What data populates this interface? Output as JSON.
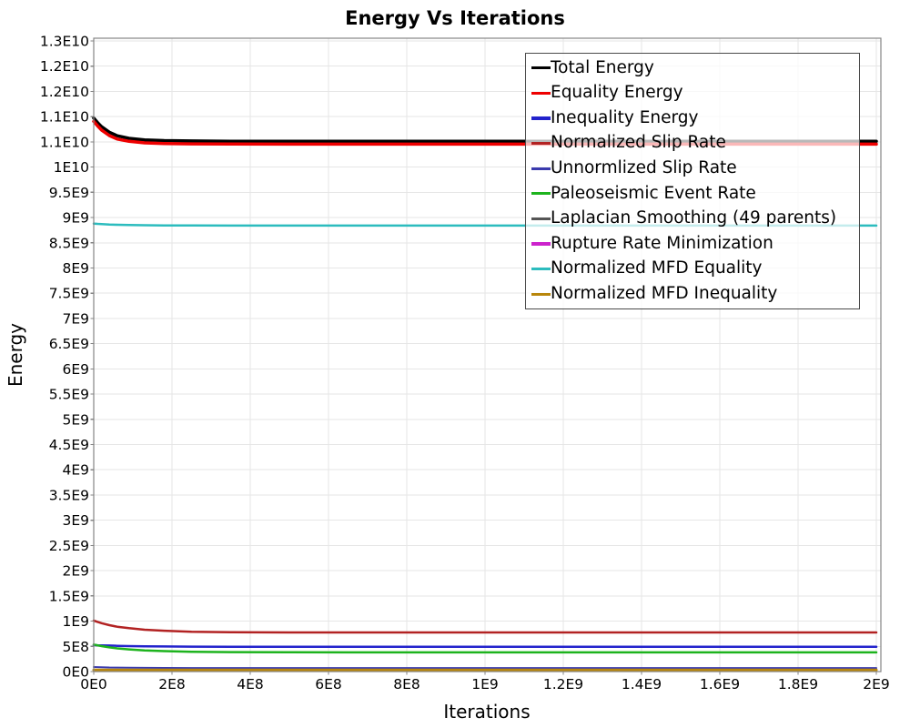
{
  "chart_data": {
    "type": "line",
    "title": "Energy Vs Iterations",
    "xlabel": "Iterations",
    "ylabel": "Energy",
    "xlim": [
      0,
      2012000000.0
    ],
    "ylim": [
      0,
      12550000000.0
    ],
    "grid": true,
    "grid_color": "#e6e6e6",
    "border_color": "#858585",
    "legend_position": "top-right",
    "x_ticks": {
      "values": [
        0,
        200000000.0,
        400000000.0,
        600000000.0,
        800000000.0,
        1000000000.0,
        1200000000.0,
        1400000000.0,
        1600000000.0,
        1800000000.0,
        2000000000.0
      ],
      "labels": [
        "0E0",
        "2E8",
        "4E8",
        "6E8",
        "8E8",
        "1E9",
        "1.2E9",
        "1.4E9",
        "1.6E9",
        "1.8E9",
        "2E9"
      ]
    },
    "y_ticks": {
      "values": [
        0,
        500000000.0,
        1000000000.0,
        1500000000.0,
        2000000000.0,
        2500000000.0,
        3000000000.0,
        3500000000.0,
        4000000000.0,
        4500000000.0,
        5000000000.0,
        5500000000.0,
        6000000000.0,
        6500000000.0,
        7000000000.0,
        7500000000.0,
        8000000000.0,
        8500000000.0,
        9000000000.0,
        9500000000.0,
        10000000000.0,
        10500000000.0,
        11000000000.0,
        11500000000.0,
        12000000000.0,
        12500000000.0
      ],
      "labels": [
        "0E0",
        "5E8",
        "1E9",
        "1.5E9",
        "2E9",
        "2.5E9",
        "3E9",
        "3.5E9",
        "4E9",
        "4.5E9",
        "5E9",
        "5.5E9",
        "6E9",
        "6.5E9",
        "7E9",
        "7.5E9",
        "8E9",
        "8.5E9",
        "9E9",
        "9.5E9",
        "1E10",
        "1.1E10",
        "1.1E10",
        "1.2E10",
        "1.2E10",
        "1.3E10"
      ]
    },
    "x": [
      0,
      10000000.0,
      20000000.0,
      40000000.0,
      60000000.0,
      90000000.0,
      130000000.0,
      180000000.0,
      250000000.0,
      350000000.0,
      500000000.0,
      750000000.0,
      1000000000.0,
      1250000000.0,
      1500000000.0,
      1750000000.0,
      2000000000.0
    ],
    "series": [
      {
        "name": "Total Energy",
        "color": "#000000",
        "width": 3.5,
        "values": [
          10970000000.0,
          10880000000.0,
          10800000000.0,
          10690000000.0,
          10620000000.0,
          10570000000.0,
          10540000000.0,
          10525000000.0,
          10517000000.0,
          10512000000.0,
          10510000000.0,
          10510000000.0,
          10510000000.0,
          10510000000.0,
          10510000000.0,
          10510000000.0,
          10510000000.0
        ]
      },
      {
        "name": "Equality Energy",
        "color": "#ee0000",
        "width": 3.5,
        "values": [
          10905000000.0,
          10815000000.0,
          10735000000.0,
          10625000000.0,
          10555000000.0,
          10510000000.0,
          10480000000.0,
          10467000000.0,
          10460000000.0,
          10456000000.0,
          10455000000.0,
          10455000000.0,
          10455000000.0,
          10455000000.0,
          10455000000.0,
          10455000000.0,
          10455000000.0
        ]
      },
      {
        "name": "Inequality Energy",
        "color": "#2222cc",
        "width": 2.5,
        "values": [
          525000000.0,
          522000000.0,
          520000000.0,
          515000000.0,
          510000000.0,
          505000000.0,
          500000000.0,
          497000000.0,
          494000000.0,
          492000000.0,
          490000000.0,
          490000000.0,
          490000000.0,
          490000000.0,
          490000000.0,
          490000000.0,
          490000000.0
        ]
      },
      {
        "name": "Normalized Slip Rate",
        "color": "#b22222",
        "width": 2.5,
        "values": [
          1010000000.0,
          985000000.0,
          960000000.0,
          920000000.0,
          890000000.0,
          860000000.0,
          830000000.0,
          810000000.0,
          790000000.0,
          780000000.0,
          775000000.0,
          775000000.0,
          775000000.0,
          775000000.0,
          775000000.0,
          775000000.0,
          775000000.0
        ]
      },
      {
        "name": "Unnormlized Slip Rate",
        "color": "#3a3aad",
        "width": 2,
        "values": [
          90000000.0,
          88000000.0,
          86000000.0,
          82000000.0,
          79000000.0,
          76000000.0,
          74000000.0,
          72000000.0,
          71000000.0,
          70000000.0,
          70000000.0,
          70000000.0,
          70000000.0,
          70000000.0,
          70000000.0,
          70000000.0,
          70000000.0
        ]
      },
      {
        "name": "Paleoseismic Event Rate",
        "color": "#1db31d",
        "width": 2.5,
        "values": [
          535000000.0,
          520000000.0,
          505000000.0,
          480000000.0,
          460000000.0,
          440000000.0,
          420000000.0,
          405000000.0,
          393000000.0,
          386000000.0,
          382000000.0,
          380000000.0,
          380000000.0,
          380000000.0,
          380000000.0,
          380000000.0,
          380000000.0
        ]
      },
      {
        "name": "Laplacian Smoothing (49 parents)",
        "color": "#555555",
        "width": 2,
        "values": [
          12000000.0,
          12000000.0,
          12000000.0,
          12000000.0,
          12000000.0,
          12000000.0,
          12000000.0,
          12000000.0,
          12000000.0,
          12000000.0,
          12000000.0,
          12000000.0,
          12000000.0,
          12000000.0,
          12000000.0,
          12000000.0,
          12000000.0
        ]
      },
      {
        "name": "Rupture Rate Minimization",
        "color": "#cc22cc",
        "width": 2,
        "values": [
          18000000.0,
          18000000.0,
          18000000.0,
          18000000.0,
          18000000.0,
          18000000.0,
          18000000.0,
          18000000.0,
          18000000.0,
          18000000.0,
          18000000.0,
          18000000.0,
          18000000.0,
          18000000.0,
          18000000.0,
          18000000.0,
          18000000.0
        ]
      },
      {
        "name": "Normalized MFD Equality",
        "color": "#2cbcbe",
        "width": 2.5,
        "values": [
          8880000000.0,
          8875000000.0,
          8870000000.0,
          8862000000.0,
          8856000000.0,
          8851000000.0,
          8847000000.0,
          8844000000.0,
          8842000000.0,
          8841000000.0,
          8840000000.0,
          8840000000.0,
          8840000000.0,
          8840000000.0,
          8840000000.0,
          8840000000.0,
          8840000000.0
        ]
      },
      {
        "name": "Normalized MFD Inequality",
        "color": "#b8860b",
        "width": 3,
        "values": [
          30000000.0,
          30000000.0,
          30000000.0,
          30000000.0,
          30000000.0,
          30000000.0,
          30000000.0,
          30000000.0,
          30000000.0,
          30000000.0,
          30000000.0,
          30000000.0,
          30000000.0,
          30000000.0,
          30000000.0,
          30000000.0,
          30000000.0
        ]
      }
    ]
  }
}
